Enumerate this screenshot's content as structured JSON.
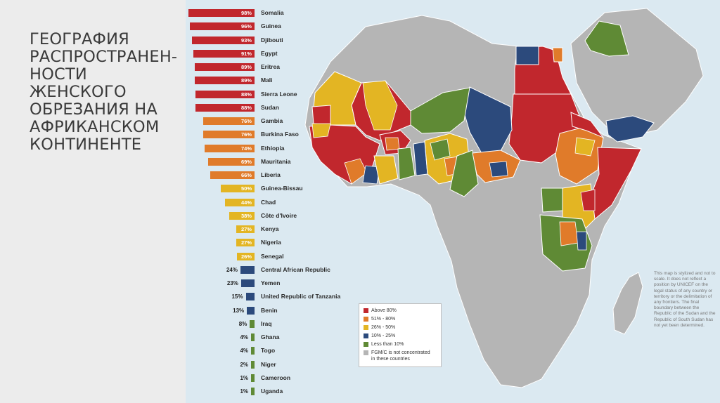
{
  "slide": {
    "title": "ГЕОГРАФИЯ РАСПРОСТРАНЕН-\nНОСТИ ЖЕНСКОГО\nОБРЕЗАНИЯ НА\nАФРИКАНСКОМ\nКОНТИНЕНТЕ"
  },
  "colors": {
    "above_80": "#c1272d",
    "r51_80": "#e07b2a",
    "r26_50": "#e3b523",
    "r10_25": "#2c4a7c",
    "less_10": "#5f8a35",
    "not_concentrated": "#b5b5b5",
    "ocean": "#dbe9f1"
  },
  "chart_data": {
    "type": "bar",
    "categories": [
      "Somalia",
      "Guinea",
      "Djibouti",
      "Egypt",
      "Eritrea",
      "Mali",
      "Sierra Leone",
      "Sudan",
      "Gambia",
      "Burkina Faso",
      "Ethiopia",
      "Mauritania",
      "Liberia",
      "Guinea-Bissau",
      "Chad",
      "Côte d'Ivoire",
      "Kenya",
      "Nigeria",
      "Senegal",
      "Central African Republic",
      "Yemen",
      "United Republic of Tanzania",
      "Benin",
      "Iraq",
      "Ghana",
      "Togo",
      "Niger",
      "Cameroon",
      "Uganda"
    ],
    "labels": [
      "98%",
      "96%",
      "93%",
      "91%",
      "89%",
      "89%",
      "88%",
      "88%",
      "76%",
      "76%",
      "74%",
      "69%",
      "66%",
      "50%",
      "44%",
      "38%",
      "27%",
      "27%",
      "26%",
      "24%",
      "23%",
      "15%",
      "13%",
      "8%",
      "4%",
      "4%",
      "2%",
      "1%",
      "1%"
    ],
    "values": [
      98,
      96,
      93,
      91,
      89,
      89,
      88,
      88,
      76,
      76,
      74,
      69,
      66,
      50,
      44,
      38,
      27,
      27,
      26,
      24,
      23,
      15,
      13,
      8,
      4,
      4,
      2,
      1,
      1
    ],
    "xlim": [
      0,
      100
    ]
  },
  "legend": {
    "items": [
      {
        "label": "Above 80%",
        "color": "#c1272d"
      },
      {
        "label": "51% - 80%",
        "color": "#e07b2a"
      },
      {
        "label": "26% - 50%",
        "color": "#e3b523"
      },
      {
        "label": "10% - 25%",
        "color": "#2c4a7c"
      },
      {
        "label": "Less than 10%",
        "color": "#5f8a35"
      },
      {
        "label": "FGM/C is not concentrated\nin these countries",
        "color": "#b5b5b5"
      }
    ]
  },
  "disclaimer": "This map is stylized and not to scale. It does not reflect a position by UNICEF on the legal status of any country or territory or the delimitation of any frontiers. The final boundary between the Republic of the Sudan and the Republic of South Sudan has not yet been determined."
}
